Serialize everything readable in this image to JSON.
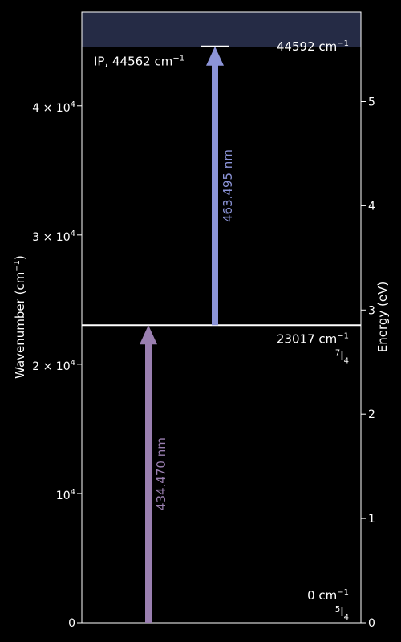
{
  "diagram": {
    "left_axis_label": "Wavenumber (cm",
    "left_axis_label_sup": "−1",
    "left_axis_label_end": ")",
    "right_axis_label": "Energy (eV)",
    "left_ticks": [
      {
        "value": 0,
        "label": "0"
      },
      {
        "value": 10000,
        "mantissa": "",
        "exp": "4",
        "base": "10"
      },
      {
        "value": 20000,
        "mantissa": "2 × ",
        "exp": "4",
        "base": "10"
      },
      {
        "value": 30000,
        "mantissa": "3 × ",
        "exp": "4",
        "base": "10"
      },
      {
        "value": 40000,
        "mantissa": "4 × ",
        "exp": "4",
        "base": "10"
      }
    ],
    "right_ticks": [
      "0",
      "1",
      "2",
      "3",
      "4",
      "5"
    ],
    "ip": {
      "label": "IP, 44562 cm",
      "sup": "−1",
      "value": 44562
    },
    "levels": [
      {
        "value": 0,
        "energy_text": "0 cm",
        "energy_sup": "−1",
        "term_sup": "5",
        "term": "I",
        "term_sub": "4"
      },
      {
        "value": 23017,
        "energy_text": "23017 cm",
        "energy_sup": "−1",
        "term_sup": "7",
        "term": "I",
        "term_sub": "4"
      },
      {
        "value": 44592,
        "energy_text": "44592 cm",
        "energy_sup": "−1"
      }
    ],
    "transitions": [
      {
        "from": 0,
        "to": 23017,
        "label": "434.470 nm",
        "color": "#9a7fb0"
      },
      {
        "from": 23017,
        "to": 44592,
        "label": "463.495 nm",
        "color": "#8c94d8"
      }
    ],
    "colors": {
      "continuum": "#252b45",
      "background": "#000000",
      "foreground": "#ffffff"
    }
  }
}
